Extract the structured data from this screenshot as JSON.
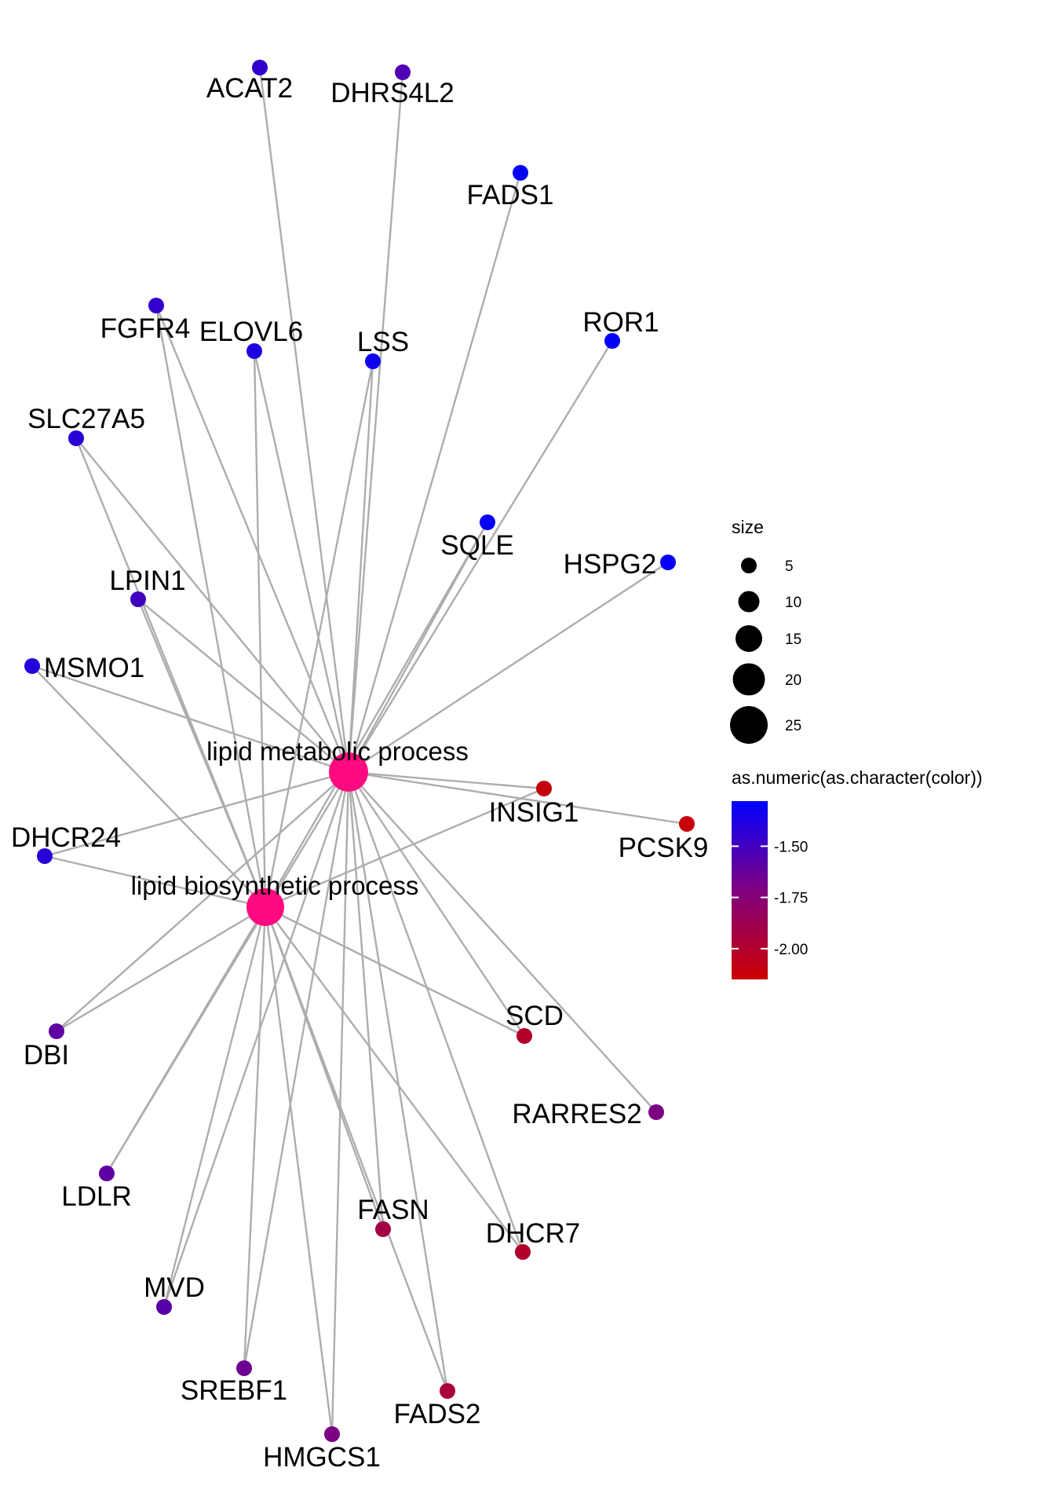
{
  "diagram": {
    "terms": [
      {
        "id": "lmp",
        "label": "lipid metabolic process",
        "size": 27,
        "color_value": -1.0
      },
      {
        "id": "lbp",
        "label": "lipid biosynthetic process",
        "size": 25,
        "color_value": -1.0
      }
    ],
    "genes": [
      {
        "id": "ACAT2",
        "label": "ACAT2",
        "color_value": -1.45
      },
      {
        "id": "DHRS4L2",
        "label": "DHRS4L2",
        "color_value": -1.55
      },
      {
        "id": "FADS1",
        "label": "FADS1",
        "color_value": -1.3
      },
      {
        "id": "ROR1",
        "label": "ROR1",
        "color_value": -1.3
      },
      {
        "id": "FGFR4",
        "label": "FGFR4",
        "color_value": -1.45
      },
      {
        "id": "ELOVL6",
        "label": "ELOVL6",
        "color_value": -1.38
      },
      {
        "id": "LSS",
        "label": "LSS",
        "color_value": -1.33
      },
      {
        "id": "SLC27A5",
        "label": "SLC27A5",
        "color_value": -1.42
      },
      {
        "id": "SQLE",
        "label": "SQLE",
        "color_value": -1.3
      },
      {
        "id": "HSPG2",
        "label": "HSPG2",
        "color_value": -1.3
      },
      {
        "id": "LPIN1",
        "label": "LPIN1",
        "color_value": -1.5
      },
      {
        "id": "MSMO1",
        "label": "MSMO1",
        "color_value": -1.4
      },
      {
        "id": "INSIG1",
        "label": "INSIG1",
        "color_value": -2.1
      },
      {
        "id": "PCSK9",
        "label": "PCSK9",
        "color_value": -2.12
      },
      {
        "id": "DHCR24",
        "label": "DHCR24",
        "color_value": -1.42
      },
      {
        "id": "SCD",
        "label": "SCD",
        "color_value": -2.0
      },
      {
        "id": "DBI",
        "label": "DBI",
        "color_value": -1.6
      },
      {
        "id": "RARRES2",
        "label": "RARRES2",
        "color_value": -1.7
      },
      {
        "id": "LDLR",
        "label": "LDLR",
        "color_value": -1.6
      },
      {
        "id": "FASN",
        "label": "FASN",
        "color_value": -1.92
      },
      {
        "id": "DHCR7",
        "label": "DHCR7",
        "color_value": -2.0
      },
      {
        "id": "MVD",
        "label": "MVD",
        "color_value": -1.58
      },
      {
        "id": "SREBF1",
        "label": "SREBF1",
        "color_value": -1.65
      },
      {
        "id": "FADS2",
        "label": "FADS2",
        "color_value": -1.95
      },
      {
        "id": "HMGCS1",
        "label": "HMGCS1",
        "color_value": -1.7
      }
    ],
    "edges": [
      [
        "lmp",
        "ACAT2"
      ],
      [
        "lmp",
        "DHRS4L2"
      ],
      [
        "lmp",
        "FADS1"
      ],
      [
        "lmp",
        "ROR1"
      ],
      [
        "lmp",
        "FGFR4"
      ],
      [
        "lmp",
        "ELOVL6"
      ],
      [
        "lmp",
        "LSS"
      ],
      [
        "lmp",
        "SLC27A5"
      ],
      [
        "lmp",
        "SQLE"
      ],
      [
        "lmp",
        "HSPG2"
      ],
      [
        "lmp",
        "LPIN1"
      ],
      [
        "lmp",
        "MSMO1"
      ],
      [
        "lmp",
        "INSIG1"
      ],
      [
        "lmp",
        "PCSK9"
      ],
      [
        "lmp",
        "DHCR24"
      ],
      [
        "lmp",
        "SCD"
      ],
      [
        "lmp",
        "DBI"
      ],
      [
        "lmp",
        "RARRES2"
      ],
      [
        "lmp",
        "LDLR"
      ],
      [
        "lmp",
        "FASN"
      ],
      [
        "lmp",
        "DHCR7"
      ],
      [
        "lmp",
        "MVD"
      ],
      [
        "lmp",
        "SREBF1"
      ],
      [
        "lmp",
        "FADS2"
      ],
      [
        "lmp",
        "HMGCS1"
      ],
      [
        "lbp",
        "FGFR4"
      ],
      [
        "lbp",
        "ELOVL6"
      ],
      [
        "lbp",
        "LSS"
      ],
      [
        "lbp",
        "SLC27A5"
      ],
      [
        "lbp",
        "SQLE"
      ],
      [
        "lbp",
        "LPIN1"
      ],
      [
        "lbp",
        "MSMO1"
      ],
      [
        "lbp",
        "INSIG1"
      ],
      [
        "lbp",
        "DHCR24"
      ],
      [
        "lbp",
        "SCD"
      ],
      [
        "lbp",
        "DBI"
      ],
      [
        "lbp",
        "LDLR"
      ],
      [
        "lbp",
        "FASN"
      ],
      [
        "lbp",
        "DHCR7"
      ],
      [
        "lbp",
        "MVD"
      ],
      [
        "lbp",
        "SREBF1"
      ],
      [
        "lbp",
        "FADS2"
      ],
      [
        "lbp",
        "HMGCS1"
      ]
    ]
  },
  "legend": {
    "size_title": "size",
    "size_entries": [
      {
        "label": "5",
        "value": 5
      },
      {
        "label": "10",
        "value": 10
      },
      {
        "label": "15",
        "value": 15
      },
      {
        "label": "20",
        "value": 20
      },
      {
        "label": "25",
        "value": 25
      }
    ],
    "color_title": "as.numeric(as.character(color))",
    "color_high": "#0000ff",
    "color_mid": "#800080",
    "color_low": "#cc0000",
    "color_ticks": [
      {
        "label": "-1.50",
        "value": -1.5
      },
      {
        "label": "-1.75",
        "value": -1.75
      },
      {
        "label": "-2.00",
        "value": -2.0
      }
    ],
    "color_range": [
      -2.15,
      -1.28
    ]
  },
  "colors": {
    "term_node": "#ff0a80",
    "edge": "#adadad"
  }
}
